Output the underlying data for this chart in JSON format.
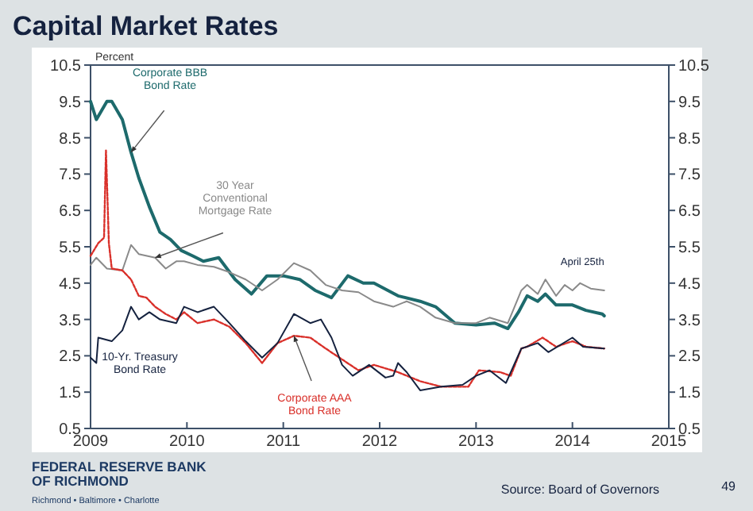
{
  "chart_data": {
    "type": "line",
    "title": "Capital Market Rates",
    "ylabel": "Percent",
    "xlim": [
      2009,
      2015
    ],
    "xticks": [
      2009,
      2010,
      2011,
      2012,
      2013,
      2014,
      2015
    ],
    "ylim": [
      0.5,
      10.5
    ],
    "yticks": [
      0.5,
      1.5,
      2.5,
      3.5,
      4.5,
      5.5,
      6.5,
      7.5,
      8.5,
      9.5,
      10.5
    ],
    "y2lim": [
      0.5,
      10.5
    ],
    "y2ticks": [
      0.5,
      1.5,
      2.5,
      3.5,
      4.5,
      5.5,
      6.5,
      7.5,
      8.5,
      9.5,
      10.5
    ],
    "grid": false,
    "marker": "none",
    "series": [
      {
        "name": "Corporate BBB\nBond Rate",
        "color": "#1d6a6c",
        "line_style": "solid",
        "x": [
          2009.0,
          2009.06,
          2009.17,
          2009.22,
          2009.33,
          2009.42,
          2009.5,
          2009.61,
          2009.72,
          2009.83,
          2009.94,
          2010.06,
          2010.17,
          2010.33,
          2010.5,
          2010.67,
          2010.83,
          2011.0,
          2011.17,
          2011.33,
          2011.5,
          2011.67,
          2011.83,
          2011.94,
          2012.19,
          2012.42,
          2012.58,
          2012.78,
          2013.0,
          2013.19,
          2013.33,
          2013.44,
          2013.53,
          2013.64,
          2013.72,
          2013.83,
          2014.0,
          2014.14,
          2014.31,
          2014.33
        ],
        "values": [
          9.5,
          9.0,
          9.5,
          9.5,
          9.0,
          8.1,
          7.4,
          6.6,
          5.9,
          5.7,
          5.4,
          5.25,
          5.1,
          5.2,
          4.6,
          4.2,
          4.7,
          4.7,
          4.6,
          4.3,
          4.1,
          4.7,
          4.5,
          4.5,
          4.15,
          4.0,
          3.85,
          3.4,
          3.35,
          3.4,
          3.25,
          3.7,
          4.15,
          4.0,
          4.2,
          3.9,
          3.9,
          3.75,
          3.65,
          3.6
        ]
      },
      {
        "name": "30 Year\nConventional\nMortgage Rate",
        "color": "#8a8a8a",
        "line_style": "solid",
        "x": [
          2009.0,
          2009.06,
          2009.17,
          2009.33,
          2009.42,
          2009.5,
          2009.67,
          2009.78,
          2009.89,
          2009.97,
          2010.11,
          2010.28,
          2010.44,
          2010.61,
          2010.78,
          2010.94,
          2011.11,
          2011.28,
          2011.44,
          2011.61,
          2011.78,
          2011.94,
          2012.14,
          2012.28,
          2012.42,
          2012.58,
          2012.78,
          2013.0,
          2013.14,
          2013.33,
          2013.47,
          2013.53,
          2013.64,
          2013.72,
          2013.83,
          2013.92,
          2014.0,
          2014.08,
          2014.19,
          2014.33
        ],
        "values": [
          5.0,
          5.2,
          4.9,
          4.85,
          5.55,
          5.3,
          5.2,
          4.9,
          5.1,
          5.1,
          5.0,
          4.95,
          4.8,
          4.6,
          4.3,
          4.6,
          5.05,
          4.85,
          4.45,
          4.3,
          4.25,
          4.0,
          3.85,
          4.0,
          3.85,
          3.55,
          3.4,
          3.4,
          3.55,
          3.4,
          4.3,
          4.45,
          4.2,
          4.6,
          4.15,
          4.45,
          4.3,
          4.5,
          4.35,
          4.3
        ]
      },
      {
        "name": "Corporate AAA\nBond Rate",
        "color": "#d9302a",
        "line_style": "dotted",
        "x": [
          2009.0,
          2009.08,
          2009.14,
          2009.16,
          2009.19,
          2009.22,
          2009.33,
          2009.42,
          2009.5,
          2009.58,
          2009.67,
          2009.78,
          2009.89,
          2009.97,
          2010.11,
          2010.28,
          2010.44,
          2010.61,
          2010.78,
          2010.94,
          2011.11,
          2011.28,
          2011.44,
          2011.61,
          2011.78,
          2011.94,
          2012.19,
          2012.42,
          2012.64,
          2012.92,
          2013.03,
          2013.25,
          2013.36,
          2013.47,
          2013.53,
          2013.69,
          2013.83,
          2014.0,
          2014.14,
          2014.33
        ],
        "values": [
          5.25,
          5.6,
          5.75,
          8.15,
          5.6,
          4.9,
          4.85,
          4.6,
          4.15,
          4.1,
          3.85,
          3.65,
          3.5,
          3.7,
          3.4,
          3.5,
          3.3,
          2.85,
          2.3,
          2.85,
          3.05,
          3.0,
          2.7,
          2.4,
          2.1,
          2.25,
          2.05,
          1.8,
          1.65,
          1.65,
          2.1,
          2.05,
          1.95,
          2.7,
          2.75,
          3.0,
          2.75,
          2.9,
          2.75,
          2.7
        ]
      },
      {
        "name": "10-Yr. Treasury\nBond Rate",
        "color": "#15223f",
        "line_style": "solid",
        "x": [
          2009.0,
          2009.06,
          2009.08,
          2009.22,
          2009.33,
          2009.42,
          2009.5,
          2009.61,
          2009.72,
          2009.89,
          2009.97,
          2010.11,
          2010.28,
          2010.44,
          2010.61,
          2010.78,
          2010.94,
          2011.11,
          2011.28,
          2011.39,
          2011.5,
          2011.61,
          2011.72,
          2011.89,
          2012.06,
          2012.14,
          2012.19,
          2012.28,
          2012.42,
          2012.64,
          2012.86,
          2013.0,
          2013.14,
          2013.31,
          2013.47,
          2013.64,
          2013.75,
          2014.0,
          2014.11,
          2014.33
        ],
        "values": [
          2.45,
          2.3,
          3.0,
          2.9,
          3.2,
          3.85,
          3.5,
          3.7,
          3.5,
          3.4,
          3.85,
          3.7,
          3.85,
          3.4,
          2.9,
          2.45,
          2.85,
          3.65,
          3.4,
          3.5,
          3.0,
          2.25,
          1.95,
          2.25,
          1.9,
          1.95,
          2.3,
          2.05,
          1.55,
          1.65,
          1.7,
          1.95,
          2.1,
          1.75,
          2.7,
          2.85,
          2.6,
          3.0,
          2.75,
          2.7
        ]
      }
    ],
    "annotations": [
      "April 25th",
      "Source: Board of Governors",
      "49",
      "FEDERAL RESERVE BANK\nOF RICHMOND",
      "Richmond • Baltimore • Charlotte"
    ]
  }
}
